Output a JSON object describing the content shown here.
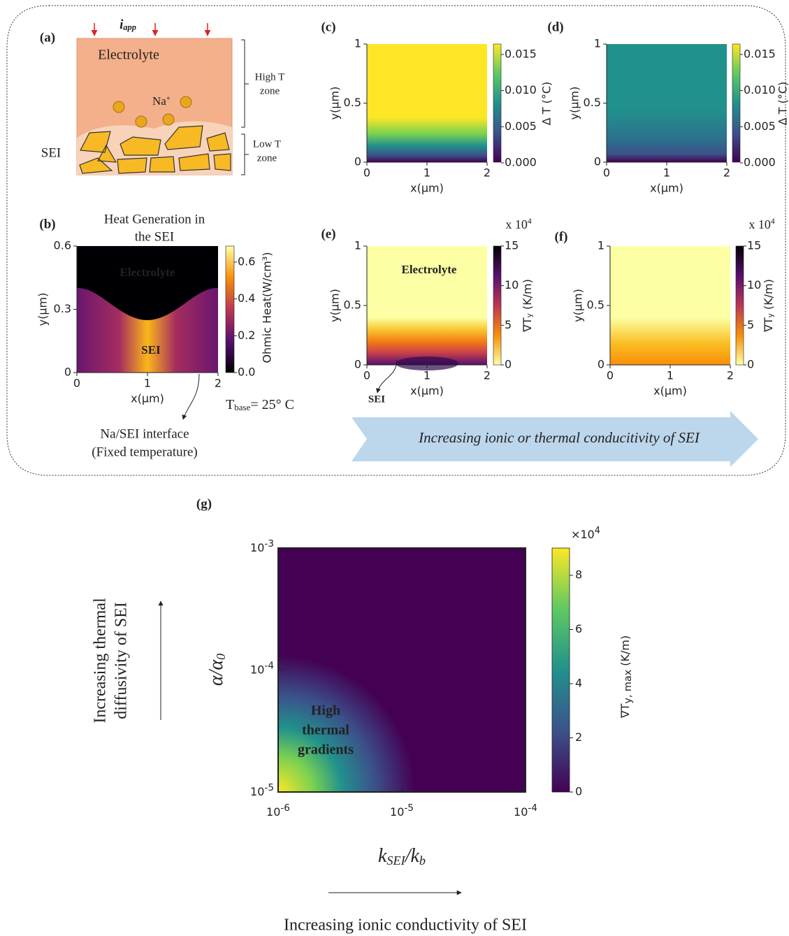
{
  "panel_a": {
    "label": "(a)",
    "current": {
      "base": "i",
      "sub": "app"
    },
    "electrolyte": "Electrolyte",
    "ion": {
      "base": "Na",
      "sup": "+"
    },
    "sei": "SEI",
    "high_t_zone": [
      "High T",
      "zone"
    ],
    "low_t_zone": [
      "Low T",
      "zone"
    ]
  },
  "panel_b": {
    "label": "(b)",
    "title": [
      "Heat Generation in",
      "the SEI"
    ],
    "yticks": [
      "0.6",
      "0.3",
      "0"
    ],
    "xticks": [
      "0",
      "1",
      "2"
    ],
    "xlabel": "x(μm)",
    "ylabel": "y(μm)",
    "colorbar_ticks": [
      "0.6",
      "0.4",
      "0.2",
      "0.0"
    ],
    "colorbar_label": "Ohmic Heat(W/cm³)",
    "electrolyte": "Electrolyte",
    "sei": "SEI",
    "t_base": {
      "base": "T",
      "sub": "base",
      "rest": "= 25° C"
    },
    "interface_note": [
      "Na/SEI interface",
      "(Fixed temperature)"
    ]
  },
  "panel_c": {
    "label": "(c)",
    "yticks": [
      "1",
      "0.5",
      "0"
    ],
    "xticks": [
      "0",
      "1",
      "2"
    ],
    "xlabel": "x(μm)",
    "ylabel": "y(μm)",
    "colorbar_ticks": [
      "0.015",
      "0.010",
      "0.005",
      "0.000"
    ],
    "colorbar_label": "Δ T (°C)"
  },
  "panel_d": {
    "label": "(d)",
    "yticks": [
      "1",
      "0.5",
      "0"
    ],
    "xticks": [
      "0",
      "1",
      "2"
    ],
    "xlabel": "x(μm)",
    "ylabel": "y(μm)",
    "colorbar_ticks": [
      "0.015",
      "0.010",
      "0.005",
      "0.000"
    ],
    "colorbar_label": "Δ T (°C)"
  },
  "panel_e": {
    "label": "(e)",
    "multiplier": {
      "base": "x 10",
      "sup": "4"
    },
    "yticks": [
      "1",
      "0.5",
      "0"
    ],
    "xticks": [
      "0",
      "1",
      "2"
    ],
    "xlabel": "x(μm)",
    "ylabel": "y(μm)",
    "colorbar_ticks": [
      "15",
      "10",
      "5",
      "0"
    ],
    "colorbar_label": {
      "base": "∇T",
      "sub": "y",
      "rest": " (K/m)"
    },
    "electrolyte": "Electrolyte",
    "sei": "SEI"
  },
  "panel_f": {
    "label": "(f)",
    "multiplier": {
      "base": "x 10",
      "sup": "4"
    },
    "yticks": [
      "1",
      "0.5",
      "0"
    ],
    "xticks": [
      "0",
      "1",
      "2"
    ],
    "xlabel": "x(μm)",
    "ylabel": "y(μm)",
    "colorbar_ticks": [
      "15",
      "10",
      "5",
      "0"
    ],
    "colorbar_label": {
      "base": "∇T",
      "sub": "y",
      "rest": " (K/m)"
    }
  },
  "banner": "Increasing ionic or thermal conducitivity of SEI",
  "panel_g": {
    "label": "(g)",
    "yticks": [
      {
        "base": "10",
        "sup": "-3"
      },
      {
        "base": "10",
        "sup": "-4"
      },
      {
        "base": "10",
        "sup": "-5"
      }
    ],
    "xticks": [
      {
        "base": "10",
        "sup": "-6"
      },
      {
        "base": "10",
        "sup": "-5"
      },
      {
        "base": "10",
        "sup": "-4"
      }
    ],
    "ylabel": {
      "base": "α/α",
      "sub": "0"
    },
    "xlabel": {
      "base": "k",
      "sub": "SEI",
      "mid": "/k",
      "sub2": "b"
    },
    "colorbar_multiplier": {
      "base": "×10",
      "sup": "4"
    },
    "colorbar_ticks": [
      "8",
      "6",
      "4",
      "2",
      "0"
    ],
    "colorbar_label": {
      "base": "∇T",
      "sub": "y, max",
      "rest": " (K/m)"
    },
    "annotation": [
      "High",
      "thermal",
      "gradients"
    ],
    "y_arrow_label": [
      "Increasing thermal",
      "diffusivity of SEI"
    ],
    "x_arrow_label": "Increasing ionic conductivity of SEI"
  }
}
